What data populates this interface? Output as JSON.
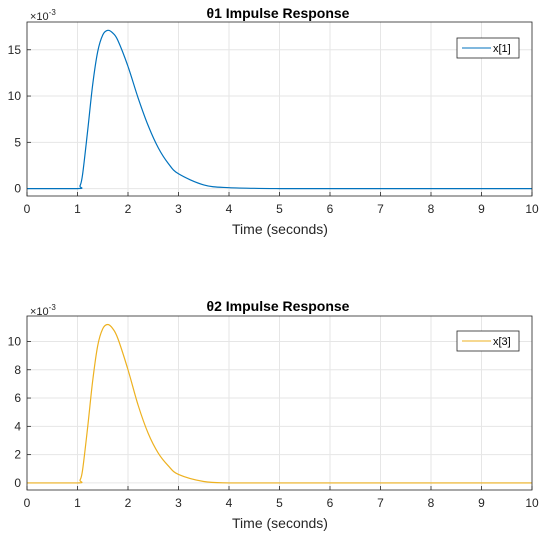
{
  "chart_data": [
    {
      "type": "line",
      "title": "θ1 Impulse Response",
      "xlabel": "Time (seconds)",
      "ylabel": "",
      "xlim": [
        0,
        10
      ],
      "ylim": [
        -0.0008,
        0.018
      ],
      "x_ticks": [
        0,
        1,
        2,
        3,
        4,
        5,
        6,
        7,
        8,
        9,
        10
      ],
      "y_ticks": [
        0,
        5,
        10,
        15
      ],
      "y_multiplier": {
        "base": "×10",
        "exponent": "-3"
      },
      "grid": true,
      "legend_position": "top-right",
      "series": [
        {
          "name": "x[1]",
          "color": "#0072BD",
          "x": [
            0,
            1.0,
            1.05,
            1.1,
            1.2,
            1.3,
            1.4,
            1.5,
            1.6,
            1.7,
            1.8,
            2.0,
            2.2,
            2.4,
            2.6,
            2.8,
            3.0,
            3.5,
            4.0,
            5.0,
            6.0,
            7.0,
            8.0,
            9.0,
            10.0
          ],
          "y": [
            0,
            0,
            0.0003,
            0.0015,
            0.0062,
            0.0112,
            0.0148,
            0.0166,
            0.0171,
            0.0168,
            0.016,
            0.0132,
            0.0098,
            0.0068,
            0.0044,
            0.0027,
            0.0016,
            0.0004,
            0.0001,
            0,
            0,
            0,
            0,
            0,
            0
          ]
        }
      ]
    },
    {
      "type": "line",
      "title": "θ2 Impulse Response",
      "xlabel": "Time (seconds)",
      "ylabel": "",
      "xlim": [
        0,
        10
      ],
      "ylim": [
        -0.0005,
        0.0118
      ],
      "x_ticks": [
        0,
        1,
        2,
        3,
        4,
        5,
        6,
        7,
        8,
        9,
        10
      ],
      "y_ticks": [
        0,
        2,
        4,
        6,
        8,
        10
      ],
      "y_multiplier": {
        "base": "×10",
        "exponent": "-3"
      },
      "grid": true,
      "legend_position": "top-right",
      "series": [
        {
          "name": "x[3]",
          "color": "#EDB120",
          "x": [
            0,
            1.0,
            1.05,
            1.1,
            1.2,
            1.3,
            1.4,
            1.5,
            1.6,
            1.7,
            1.8,
            2.0,
            2.2,
            2.4,
            2.6,
            2.8,
            3.0,
            3.5,
            4.0,
            5.0,
            6.0,
            7.0,
            8.0,
            9.0,
            10.0
          ],
          "y": [
            0,
            0,
            0.0002,
            0.0009,
            0.0039,
            0.0072,
            0.0097,
            0.0109,
            0.0112,
            0.0109,
            0.0102,
            0.008,
            0.0055,
            0.0035,
            0.0021,
            0.0012,
            0.0006,
            0.0001,
            0,
            0,
            0,
            0,
            0,
            0,
            0
          ]
        }
      ]
    }
  ]
}
